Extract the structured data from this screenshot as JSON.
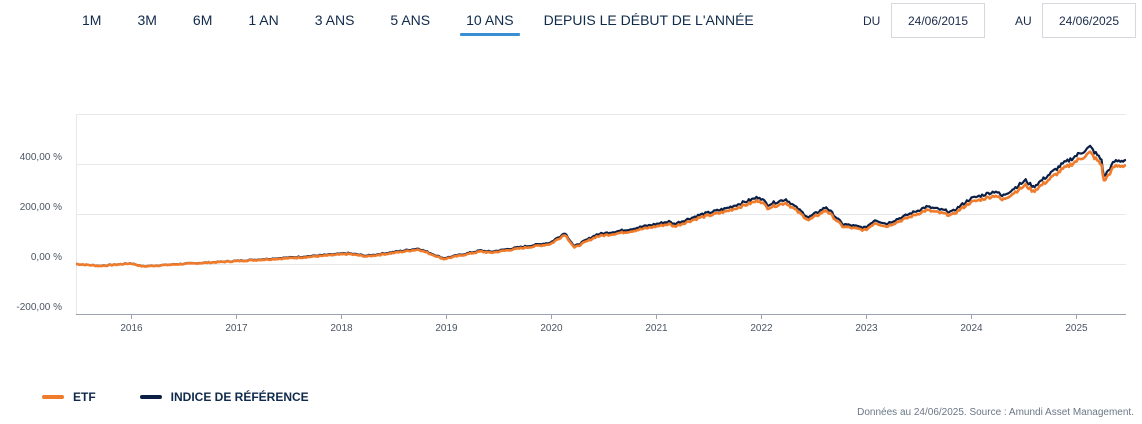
{
  "periods": [
    "1M",
    "3M",
    "6M",
    "1 AN",
    "3 ANS",
    "5 ANS",
    "10 ANS",
    "DEPUIS LE DÉBUT DE L'ANNÉE"
  ],
  "active_period": "10 ANS",
  "date_range": {
    "from_label": "DU",
    "from_value": "24/06/2015",
    "to_label": "AU",
    "to_value": "24/06/2025"
  },
  "legend": [
    {
      "label": "ETF",
      "color": "#f07c2b"
    },
    {
      "label": "INDICE DE RÉFÉRENCE",
      "color": "#0c1f45"
    }
  ],
  "footnote": "Données au 24/06/2025. Source : Amundi Asset Management.",
  "colors": {
    "grid": "#e6e8eb",
    "axis": "#9aa3ad",
    "tick_text": "#4b5563",
    "active_tab": "#3a8fd4"
  },
  "chart_data": {
    "type": "line",
    "title": "",
    "xlabel": "",
    "ylabel": "",
    "x_range": [
      "2015-06-24",
      "2025-06-24"
    ],
    "ylim": [
      -200,
      600
    ],
    "y_ticks": [
      -200,
      0,
      200,
      400
    ],
    "y_tick_labels": [
      "-200,00 %",
      "0,00 %",
      "200,00 %",
      "400,00 %"
    ],
    "x_tick_labels": [
      "2016",
      "2017",
      "2018",
      "2019",
      "2020",
      "2021",
      "2022",
      "2023",
      "2024",
      "2025"
    ],
    "grid": true,
    "legend_position": "bottom-left",
    "series": [
      {
        "name": "ETF",
        "color": "#f07c2b",
        "x": [
          "2015-06-24",
          "2015-09-15",
          "2016-01-01",
          "2016-02-12",
          "2016-06-01",
          "2016-11-08",
          "2017-03-01",
          "2017-08-01",
          "2018-01-26",
          "2018-04-01",
          "2018-09-28",
          "2018-12-24",
          "2019-05-01",
          "2019-06-05",
          "2019-12-31",
          "2020-02-19",
          "2020-03-23",
          "2020-06-08",
          "2020-09-30",
          "2021-02-15",
          "2021-03-05",
          "2021-06-01",
          "2021-09-01",
          "2021-12-27",
          "2022-01-24",
          "2022-03-29",
          "2022-06-16",
          "2022-08-16",
          "2022-10-12",
          "2022-12-30",
          "2023-02-02",
          "2023-03-13",
          "2023-07-31",
          "2023-10-27",
          "2023-12-29",
          "2024-03-28",
          "2024-04-19",
          "2024-07-10",
          "2024-08-05",
          "2024-11-11",
          "2025-02-19",
          "2025-03-31",
          "2025-04-08",
          "2025-05-15",
          "2025-06-24"
        ],
        "y": [
          0,
          -8,
          2,
          -10,
          -2,
          8,
          15,
          25,
          40,
          30,
          58,
          20,
          50,
          45,
          80,
          118,
          65,
          110,
          130,
          160,
          150,
          185,
          210,
          255,
          225,
          245,
          175,
          215,
          150,
          135,
          165,
          150,
          215,
          195,
          245,
          275,
          255,
          315,
          290,
          375,
          445,
          395,
          330,
          390,
          395
        ]
      },
      {
        "name": "INDICE DE RÉFÉRENCE",
        "color": "#0c1f45",
        "x": [
          "2015-06-24",
          "2015-09-15",
          "2016-01-01",
          "2016-02-12",
          "2016-06-01",
          "2016-11-08",
          "2017-03-01",
          "2017-08-01",
          "2018-01-26",
          "2018-04-01",
          "2018-09-28",
          "2018-12-24",
          "2019-05-01",
          "2019-06-05",
          "2019-12-31",
          "2020-02-19",
          "2020-03-23",
          "2020-06-08",
          "2020-09-30",
          "2021-02-15",
          "2021-03-05",
          "2021-06-01",
          "2021-09-01",
          "2021-12-27",
          "2022-01-24",
          "2022-03-29",
          "2022-06-16",
          "2022-08-16",
          "2022-10-12",
          "2022-12-30",
          "2023-02-02",
          "2023-03-13",
          "2023-07-31",
          "2023-10-27",
          "2023-12-29",
          "2024-03-28",
          "2024-04-19",
          "2024-07-10",
          "2024-08-05",
          "2024-11-11",
          "2025-02-19",
          "2025-03-31",
          "2025-04-08",
          "2025-05-15",
          "2025-06-24"
        ],
        "y": [
          0,
          -7,
          3,
          -9,
          -1,
          9,
          17,
          28,
          43,
          33,
          62,
          23,
          54,
          49,
          86,
          125,
          70,
          118,
          139,
          170,
          160,
          196,
          222,
          269,
          238,
          259,
          186,
          228,
          160,
          145,
          177,
          161,
          229,
          208,
          260,
          292,
          271,
          334,
          308,
          396,
          468,
          416,
          348,
          410,
          416
        ]
      }
    ]
  }
}
